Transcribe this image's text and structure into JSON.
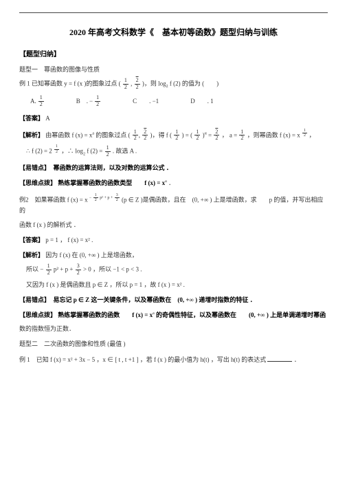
{
  "title": "2020 年高考文科数学《　基本初等函数》题型归纳与训练",
  "h1": "【题型归纳】",
  "tx1": "题型一　幂函数的图像与性质",
  "ex1_prefix": "例 1  已知幂函数  y = f (x )的图象过点  ( ",
  "ex1_mid": " )，则 log",
  "ex1_tail": " f (2) 的值为 (　　)",
  "choices": {
    "A": "A.",
    "B": "B　.",
    "C": "C　　. −1",
    "D": "D　　.  1"
  },
  "ans1_label": "【答案】",
  "ans1_val": "A",
  "jx1_label": "【解析】",
  "jx1_a": "由幂函数  f (x) = x",
  "jx1_b": " 的图象过点  ( ",
  "jx1_c": " )，得  f ( ",
  "jx1_d": " ) = ( ",
  "jx1_e": " )",
  "jx1_f": " = ",
  "jx1_g": "，  a = ",
  "jx1_h": " ，则幂函数  f (x) = x",
  "jx1_i": " ，",
  "jx1_line2a": "∴  f (2) = 2",
  "jx1_line2b": " ，∴  log",
  "jx1_line2c": " f (2) = ",
  "jx1_line2d": " . 故选  A .",
  "yc1": "【易错点】　幂函数的运算法则，以及对数的运算公式 ．",
  "swdb1": "【思维点拨】 熟练掌握幂函数的函数类型　　f (x) = x",
  "swdb1_tail": " ．",
  "ex2a": "例2　如果幂函数  f (x) = x",
  "ex2mid": " (p ∈ Z  )是偶函数，且在　(0, +∞ ) 上是增函数，求　　p 的值，并写出相应的",
  "ex2b": "函数  f (x ) 的解析式 ．",
  "ans2_label": "【答案】",
  "ans2_val": "p = 1 ，  f (x) = x² .",
  "jx2_label": "【解析】",
  "jx2_a": "因为  f (x) 在 (0, +∞ ) 上是增函数，",
  "jx2_b_a": "所以  − ",
  "jx2_b_b": " p² + p + ",
  "jx2_b_c": " > 0 ，所以  −1 < p < 3 .",
  "jx2_c": "又因为  f (x ) 是偶函数且  p ∈ Z ，所以  p = 1 ，故  f (x ) = x² .",
  "yc2": "【易错点】　易忘记  p ∈ Z 这一关键条件，以及幂函数在　(0, +∞ ) 递增时指数的特征 ．",
  "swdb2a": "【思维点拨】 熟练掌握幂函数的函数　　f (x) = x",
  "swdb2b": " 的奇偶性特征，以及幂函数在　　(0, +∞ ) 上是单调递增时幂函",
  "swdb2c": "数的指数恒为正数．",
  "tx2": "题型二　二次函数的图像和性质 (最值 )",
  "ex3a": "例 1　已知  f (x) = x² + 3x − 5 ，x ∈ [ t , t +1 ] ，若  f (x ) 的最小值为  h(t) ，写出  h(t) 的表达式",
  "dot": "．"
}
